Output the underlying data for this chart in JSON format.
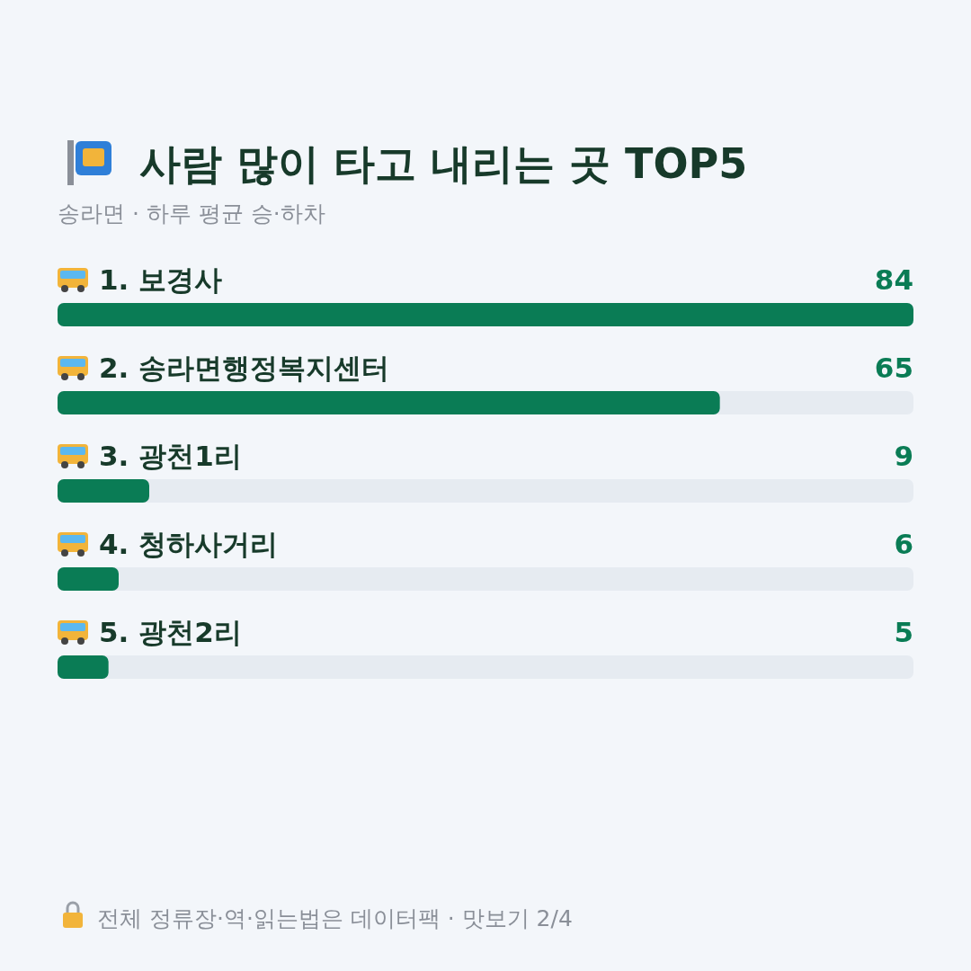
{
  "chart_data": {
    "type": "bar",
    "orientation": "horizontal",
    "title": "사람 많이 타고 내리는 곳 TOP5",
    "subtitle": "송라면 · 하루 평균 승·하차",
    "categories": [
      "1. 보경사",
      "2. 송라면행정복지센터",
      "3. 광천1리",
      "4. 청하사거리",
      "5. 광천2리"
    ],
    "values": [
      84,
      65,
      9,
      6,
      5
    ],
    "color": "#0a7c55",
    "data_labels": true,
    "annotations": [
      "전체 정류장·역·읽는법은 데이터팩 · 맛보기 2/4"
    ]
  }
}
